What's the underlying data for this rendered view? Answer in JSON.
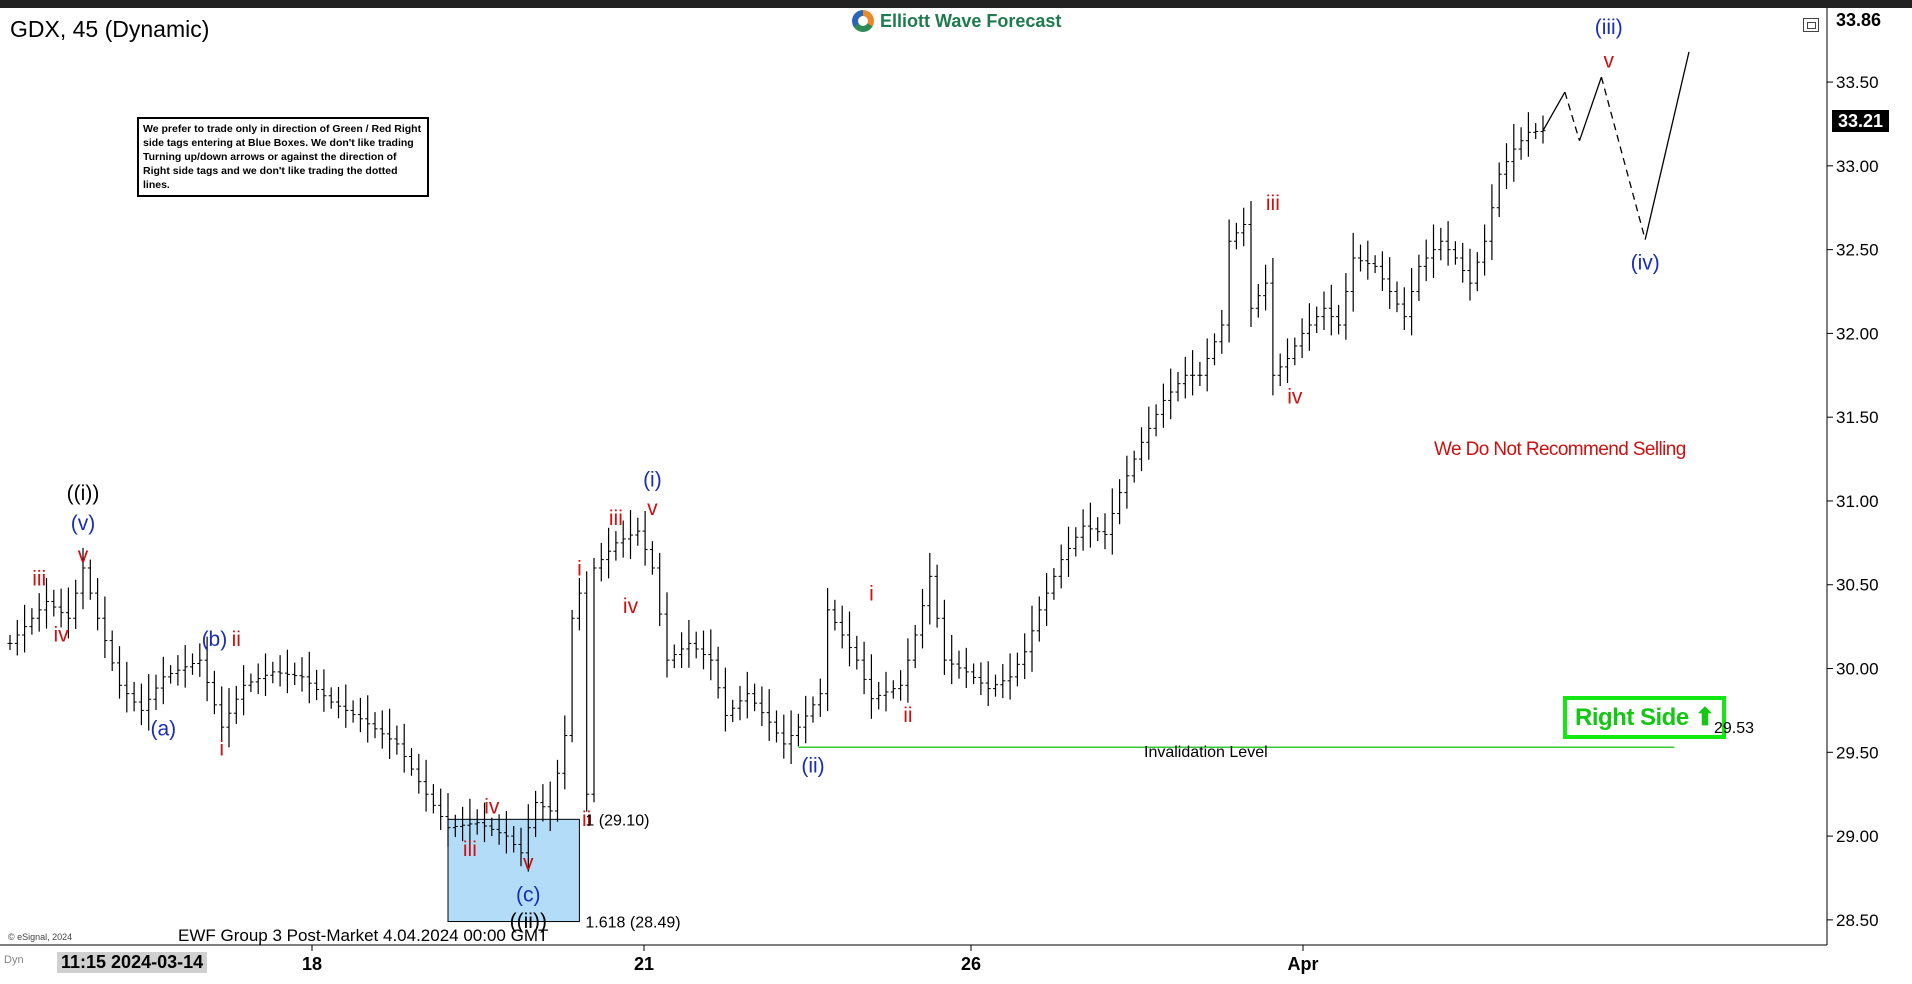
{
  "header": {
    "title": "GDX, 45 (Dynamic)",
    "brand": "Elliott Wave Forecast"
  },
  "note_box": {
    "text": "We prefer to trade only in direction of Green / Red Right side tags entering at Blue Boxes. We don't like trading Turning up/down arrows or against the direction of Right side tags and we don't like trading the dotted lines."
  },
  "badges": {
    "right_side": "Right Side",
    "right_side_arrow": "⬆",
    "recommend": "We Do Not Recommend Selling",
    "invalidation_label": "Invalidation Level",
    "invalidation_value": "29.53"
  },
  "footer": {
    "caption": "EWF Group 3 Post-Market 4.04.2024 00:00 GMT",
    "esignal": "© eSignal, 2024",
    "timestamp": "11:15 2024-03-14",
    "dyn": "Dyn"
  },
  "price": {
    "current": "33.21",
    "top": "33.86"
  },
  "colors": {
    "wave_red": "#cc1111",
    "wave_blue": "#1a2db8",
    "right_side_green": "#12c812",
    "invalidation_line": "#33cc33",
    "blue_box": "#b3dcf8",
    "price_bar": "#000000"
  },
  "chart_data": {
    "type": "ohlc-bar",
    "y_axis": {
      "min": 28.35,
      "max": 33.93,
      "ticks": [
        "28.50",
        "29.00",
        "29.50",
        "30.00",
        "30.50",
        "31.00",
        "31.50",
        "32.00",
        "32.50",
        "33.00",
        "33.50"
      ]
    },
    "x_axis": {
      "ticks": [
        "18",
        "21",
        "26",
        "Apr"
      ]
    },
    "price_path": [
      [
        0,
        30.15
      ],
      [
        5,
        30.4
      ],
      [
        8,
        30.3
      ],
      [
        10,
        30.6
      ],
      [
        12,
        30.3
      ],
      [
        15,
        29.9
      ],
      [
        18,
        29.75
      ],
      [
        21,
        29.95
      ],
      [
        26,
        30.05
      ],
      [
        29,
        29.65
      ],
      [
        32,
        29.9
      ],
      [
        36,
        29.98
      ],
      [
        40,
        29.95
      ],
      [
        44,
        29.8
      ],
      [
        48,
        29.7
      ],
      [
        53,
        29.55
      ],
      [
        57,
        29.25
      ],
      [
        60,
        29.05
      ],
      [
        64,
        29.08
      ],
      [
        68,
        29.0
      ],
      [
        70,
        28.9
      ],
      [
        72,
        29.2
      ],
      [
        74,
        29.15
      ],
      [
        76,
        29.6
      ],
      [
        77,
        30.3
      ],
      [
        78,
        30.45
      ],
      [
        79,
        29.25
      ],
      [
        80,
        30.6
      ],
      [
        83,
        30.75
      ],
      [
        86,
        30.82
      ],
      [
        88,
        30.6
      ],
      [
        90,
        30.05
      ],
      [
        93,
        30.15
      ],
      [
        96,
        30.05
      ],
      [
        98,
        29.72
      ],
      [
        101,
        29.85
      ],
      [
        104,
        29.68
      ],
      [
        106,
        29.55
      ],
      [
        108,
        29.65
      ],
      [
        111,
        29.85
      ],
      [
        112,
        30.35
      ],
      [
        116,
        30.05
      ],
      [
        118,
        29.82
      ],
      [
        122,
        29.9
      ],
      [
        124,
        30.2
      ],
      [
        126,
        30.55
      ],
      [
        128,
        30.05
      ],
      [
        131,
        29.98
      ],
      [
        134,
        29.88
      ],
      [
        137,
        29.95
      ],
      [
        139,
        30.1
      ],
      [
        141,
        30.35
      ],
      [
        144,
        30.65
      ],
      [
        147,
        30.85
      ],
      [
        150,
        30.8
      ],
      [
        152,
        31.05
      ],
      [
        155,
        31.35
      ],
      [
        158,
        31.6
      ],
      [
        161,
        31.75
      ],
      [
        163,
        31.75
      ],
      [
        166,
        32.05
      ],
      [
        167,
        32.55
      ],
      [
        169,
        32.65
      ],
      [
        170,
        32.15
      ],
      [
        172,
        32.3
      ],
      [
        173,
        31.75
      ],
      [
        175,
        31.85
      ],
      [
        177,
        32.0
      ],
      [
        180,
        32.15
      ],
      [
        182,
        32.05
      ],
      [
        184,
        32.45
      ],
      [
        187,
        32.4
      ],
      [
        189,
        32.25
      ],
      [
        191,
        32.1
      ],
      [
        193,
        32.4
      ],
      [
        196,
        32.55
      ],
      [
        198,
        32.45
      ],
      [
        200,
        32.3
      ],
      [
        202,
        32.55
      ],
      [
        204,
        32.95
      ],
      [
        206,
        33.1
      ],
      [
        208,
        33.2
      ],
      [
        210,
        33.21
      ]
    ],
    "projection_path": [
      [
        210,
        33.21
      ],
      [
        213,
        33.44
      ],
      [
        215,
        33.15
      ],
      [
        218,
        33.53
      ],
      [
        224,
        32.56
      ],
      [
        230,
        33.68
      ]
    ],
    "projection_dashed_segments": [
      [
        1,
        2
      ],
      [
        3,
        4
      ]
    ],
    "blue_box": {
      "low": 28.49,
      "high": 29.1,
      "i_start": 60,
      "i_end": 78
    },
    "fib_levels": [
      {
        "label": "1 (29.10)",
        "value": 29.1
      },
      {
        "label": "1.618 (28.49)",
        "value": 28.49
      }
    ],
    "invalidation": {
      "value": 29.53,
      "i_start": 108,
      "i_end": 228
    },
    "wave_labels": [
      {
        "text": "iii",
        "color": "red",
        "i": 4,
        "price": 30.46,
        "pos": "above"
      },
      {
        "text": "iv",
        "color": "red",
        "i": 7,
        "price": 30.28,
        "pos": "below"
      },
      {
        "text": "v",
        "color": "red",
        "i": 10,
        "price": 30.6,
        "pos": "above"
      },
      {
        "text": "(v)",
        "color": "blue",
        "i": 10,
        "price": 30.79,
        "pos": "above"
      },
      {
        "text": "((i))",
        "color": "black",
        "i": 10,
        "price": 30.97,
        "pos": "above"
      },
      {
        "text": "(a)",
        "color": "blue",
        "i": 21,
        "price": 29.72,
        "pos": "below"
      },
      {
        "text": "(b)",
        "color": "blue",
        "i": 28,
        "price": 30.1,
        "pos": "above"
      },
      {
        "text": "ii",
        "color": "red",
        "i": 31,
        "price": 30.1,
        "pos": "above"
      },
      {
        "text": "i",
        "color": "red",
        "i": 29,
        "price": 29.6,
        "pos": "below"
      },
      {
        "text": "iv",
        "color": "red",
        "i": 66,
        "price": 29.1,
        "pos": "above"
      },
      {
        "text": "iii",
        "color": "red",
        "i": 63,
        "price": 29.0,
        "pos": "below"
      },
      {
        "text": "v",
        "color": "red",
        "i": 71,
        "price": 28.92,
        "pos": "below"
      },
      {
        "text": "(c)",
        "color": "blue",
        "i": 71,
        "price": 28.73,
        "pos": "below"
      },
      {
        "text": "((ii))",
        "color": "black",
        "i": 71,
        "price": 28.57,
        "pos": "below"
      },
      {
        "text": "i",
        "color": "red",
        "i": 78,
        "price": 30.52,
        "pos": "above"
      },
      {
        "text": "ii",
        "color": "red",
        "i": 79,
        "price": 29.18,
        "pos": "below"
      },
      {
        "text": "iii",
        "color": "red",
        "i": 83,
        "price": 30.82,
        "pos": "above"
      },
      {
        "text": "iv",
        "color": "red",
        "i": 85,
        "price": 30.45,
        "pos": "below"
      },
      {
        "text": "v",
        "color": "red",
        "i": 88,
        "price": 30.88,
        "pos": "above"
      },
      {
        "text": "(i)",
        "color": "blue",
        "i": 88,
        "price": 31.05,
        "pos": "above"
      },
      {
        "text": "(ii)",
        "color": "blue",
        "i": 110,
        "price": 29.5,
        "pos": "below"
      },
      {
        "text": "i",
        "color": "red",
        "i": 118,
        "price": 30.37,
        "pos": "above"
      },
      {
        "text": "ii",
        "color": "red",
        "i": 123,
        "price": 29.8,
        "pos": "below"
      },
      {
        "text": "iii",
        "color": "red",
        "i": 173,
        "price": 32.7,
        "pos": "above"
      },
      {
        "text": "iv",
        "color": "red",
        "i": 176,
        "price": 31.7,
        "pos": "below"
      },
      {
        "text": "v",
        "color": "red",
        "i": 219,
        "price": 33.55,
        "pos": "above"
      },
      {
        "text": "(iii)",
        "color": "blue",
        "i": 219,
        "price": 33.75,
        "pos": "above"
      },
      {
        "text": "(iv)",
        "color": "blue",
        "i": 224,
        "price": 32.5,
        "pos": "below"
      }
    ]
  }
}
